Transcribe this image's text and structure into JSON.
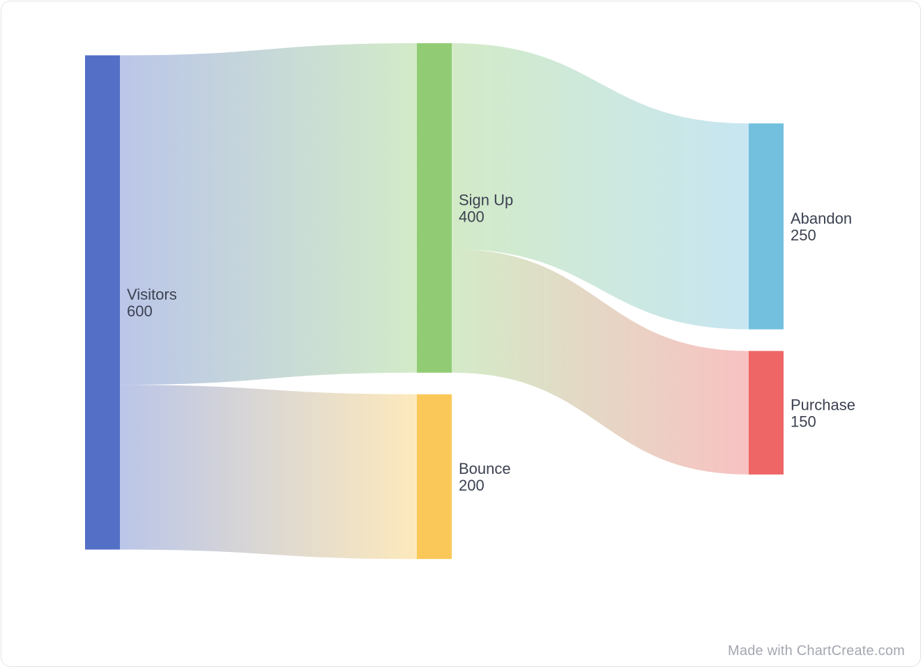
{
  "chart_data": {
    "type": "sankey",
    "nodes": [
      {
        "id": "visitors",
        "name": "Visitors",
        "value": 600,
        "color": "#5470c6",
        "column": 0
      },
      {
        "id": "signup",
        "name": "Sign Up",
        "value": 400,
        "color": "#91cc75",
        "column": 1
      },
      {
        "id": "bounce",
        "name": "Bounce",
        "value": 200,
        "color": "#fac858",
        "column": 1
      },
      {
        "id": "abandon",
        "name": "Abandon",
        "value": 250,
        "color": "#73c0de",
        "column": 2
      },
      {
        "id": "purchase",
        "name": "Purchase",
        "value": 150,
        "color": "#ee6666",
        "column": 2
      }
    ],
    "links": [
      {
        "source": "visitors",
        "target": "signup",
        "value": 400
      },
      {
        "source": "visitors",
        "target": "bounce",
        "value": 200
      },
      {
        "source": "signup",
        "target": "abandon",
        "value": 250
      },
      {
        "source": "signup",
        "target": "purchase",
        "value": 150
      }
    ]
  },
  "watermark": "Made with ChartCreate.com"
}
